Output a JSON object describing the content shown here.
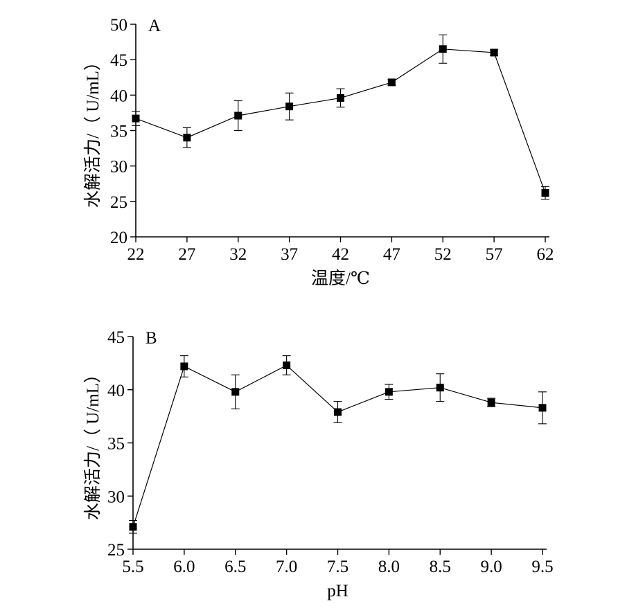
{
  "chart_data": [
    {
      "type": "line",
      "panel_label": "A",
      "xlabel": "温度/℃",
      "ylabel": "水解活力/（ U/mL）",
      "categories": [
        "22",
        "27",
        "32",
        "37",
        "42",
        "47",
        "52",
        "57",
        "62"
      ],
      "x": [
        22,
        27,
        32,
        37,
        42,
        47,
        52,
        57,
        62
      ],
      "values": [
        36.7,
        34.0,
        37.1,
        38.4,
        39.6,
        41.8,
        46.5,
        46.0,
        26.2
      ],
      "error": [
        1.0,
        1.4,
        2.1,
        1.9,
        1.3,
        0.4,
        2.0,
        0.4,
        0.9
      ],
      "ylim": [
        20,
        50
      ],
      "yticks": [
        "20",
        "25",
        "30",
        "35",
        "40",
        "45",
        "50"
      ],
      "marker": "square",
      "color": "#000000"
    },
    {
      "type": "line",
      "panel_label": "B",
      "xlabel": "pH",
      "ylabel": "水解活力/（ U/mL）",
      "categories": [
        "5.5",
        "6.0",
        "6.5",
        "7.0",
        "7.5",
        "8.0",
        "8.5",
        "9.0",
        "9.5"
      ],
      "x": [
        5.5,
        6.0,
        6.5,
        7.0,
        7.5,
        8.0,
        8.5,
        9.0,
        9.5
      ],
      "values": [
        27.1,
        42.2,
        39.8,
        42.3,
        37.9,
        39.8,
        40.2,
        38.8,
        38.3
      ],
      "error": [
        0.6,
        1.0,
        1.6,
        0.9,
        1.0,
        0.7,
        1.3,
        0.4,
        1.5
      ],
      "ylim": [
        25,
        45
      ],
      "yticks": [
        "25",
        "30",
        "35",
        "40",
        "45"
      ],
      "marker": "square",
      "color": "#000000"
    }
  ]
}
